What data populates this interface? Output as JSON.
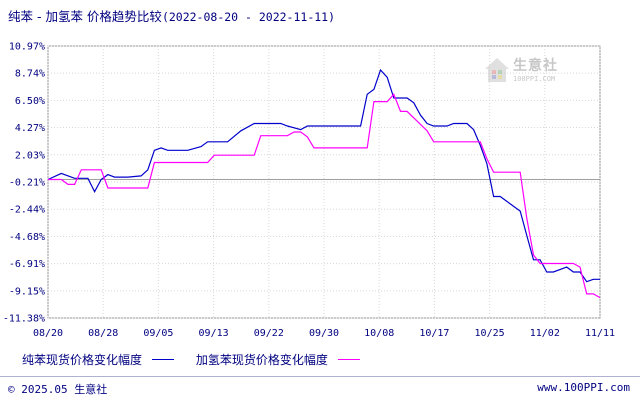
{
  "title": {
    "text": "纯苯 - 加氢苯 价格趋势比较",
    "date_range": "(2022-08-20 - 2022-11-11)"
  },
  "watermark": {
    "text": "生意社",
    "sub": "100PPI.COM"
  },
  "footer": {
    "left": "© 2025.05 生意社",
    "right": "www.100PPI.com"
  },
  "chart_data": {
    "type": "line",
    "title": "纯苯 - 加氢苯 价格趋势比较",
    "xlabel": "",
    "ylabel": "",
    "x_tick_labels": [
      "08/20",
      "08/28",
      "09/05",
      "09/13",
      "09/22",
      "09/30",
      "10/08",
      "10/17",
      "10/25",
      "11/02",
      "11/11"
    ],
    "y_tick_labels": [
      "10.97%",
      "8.74%",
      "6.50%",
      "4.27%",
      "2.03%",
      "-0.21%",
      "-2.44%",
      "-4.68%",
      "-6.91%",
      "-9.15%",
      "-11.38%"
    ],
    "y_tick_values": [
      10.97,
      8.74,
      6.5,
      4.27,
      2.03,
      -0.21,
      -2.44,
      -4.68,
      -6.91,
      -9.15,
      -11.38
    ],
    "ylim": [
      -11.38,
      10.97
    ],
    "grid": true,
    "legend_position": "bottom",
    "series": [
      {
        "name": "纯苯现货价格变化幅度",
        "color": "#0000cc",
        "points": [
          [
            "2022-08-20",
            0
          ],
          [
            "2022-08-22",
            0.5
          ],
          [
            "2022-08-24",
            0.1
          ],
          [
            "2022-08-26",
            0.1
          ],
          [
            "2022-08-27",
            -1.0
          ],
          [
            "2022-08-28",
            0
          ],
          [
            "2022-08-29",
            0.4
          ],
          [
            "2022-08-30",
            0.2
          ],
          [
            "2022-09-01",
            0.2
          ],
          [
            "2022-09-03",
            0.3
          ],
          [
            "2022-09-04",
            0.8
          ],
          [
            "2022-09-05",
            2.4
          ],
          [
            "2022-09-06",
            2.6
          ],
          [
            "2022-09-07",
            2.4
          ],
          [
            "2022-09-10",
            2.4
          ],
          [
            "2022-09-12",
            2.7
          ],
          [
            "2022-09-13",
            3.1
          ],
          [
            "2022-09-16",
            3.1
          ],
          [
            "2022-09-18",
            4.0
          ],
          [
            "2022-09-20",
            4.6
          ],
          [
            "2022-09-24",
            4.6
          ],
          [
            "2022-09-25",
            4.4
          ],
          [
            "2022-09-27",
            4.1
          ],
          [
            "2022-09-28",
            4.4
          ],
          [
            "2022-10-05",
            4.4
          ],
          [
            "2022-10-06",
            4.4
          ],
          [
            "2022-10-07",
            7.0
          ],
          [
            "2022-10-08",
            7.4
          ],
          [
            "2022-10-09",
            9.0
          ],
          [
            "2022-10-10",
            8.4
          ],
          [
            "2022-10-11",
            6.7
          ],
          [
            "2022-10-13",
            6.7
          ],
          [
            "2022-10-14",
            6.3
          ],
          [
            "2022-10-15",
            5.3
          ],
          [
            "2022-10-16",
            4.6
          ],
          [
            "2022-10-17",
            4.4
          ],
          [
            "2022-10-19",
            4.4
          ],
          [
            "2022-10-20",
            4.6
          ],
          [
            "2022-10-22",
            4.6
          ],
          [
            "2022-10-23",
            4.1
          ],
          [
            "2022-10-24",
            2.8
          ],
          [
            "2022-10-25",
            1.3
          ],
          [
            "2022-10-26",
            -1.4
          ],
          [
            "2022-10-27",
            -1.4
          ],
          [
            "2022-10-28",
            -1.8
          ],
          [
            "2022-10-30",
            -2.6
          ],
          [
            "2022-10-31",
            -4.6
          ],
          [
            "2022-11-01",
            -6.6
          ],
          [
            "2022-11-02",
            -6.6
          ],
          [
            "2022-11-03",
            -7.6
          ],
          [
            "2022-11-04",
            -7.6
          ],
          [
            "2022-11-06",
            -7.2
          ],
          [
            "2022-11-07",
            -7.6
          ],
          [
            "2022-11-08",
            -7.6
          ],
          [
            "2022-11-09",
            -8.4
          ],
          [
            "2022-11-10",
            -8.2
          ],
          [
            "2022-11-11",
            -8.2
          ]
        ]
      },
      {
        "name": "加氢苯现货价格变化幅度",
        "color": "#ff00ff",
        "points": [
          [
            "2022-08-20",
            0
          ],
          [
            "2022-08-22",
            0
          ],
          [
            "2022-08-23",
            -0.4
          ],
          [
            "2022-08-24",
            -0.4
          ],
          [
            "2022-08-25",
            0.8
          ],
          [
            "2022-08-28",
            0.8
          ],
          [
            "2022-08-29",
            -0.7
          ],
          [
            "2022-09-03",
            -0.7
          ],
          [
            "2022-09-04",
            -0.7
          ],
          [
            "2022-09-05",
            1.4
          ],
          [
            "2022-09-07",
            1.4
          ],
          [
            "2022-09-13",
            1.4
          ],
          [
            "2022-09-14",
            2.0
          ],
          [
            "2022-09-18",
            2.0
          ],
          [
            "2022-09-20",
            2.0
          ],
          [
            "2022-09-21",
            3.6
          ],
          [
            "2022-09-25",
            3.6
          ],
          [
            "2022-09-26",
            3.9
          ],
          [
            "2022-09-27",
            3.9
          ],
          [
            "2022-09-28",
            3.5
          ],
          [
            "2022-09-29",
            2.6
          ],
          [
            "2022-10-07",
            2.6
          ],
          [
            "2022-10-08",
            6.4
          ],
          [
            "2022-10-10",
            6.4
          ],
          [
            "2022-10-11",
            7.0
          ],
          [
            "2022-10-12",
            5.6
          ],
          [
            "2022-10-13",
            5.6
          ],
          [
            "2022-10-16",
            4.0
          ],
          [
            "2022-10-17",
            3.1
          ],
          [
            "2022-10-24",
            3.1
          ],
          [
            "2022-10-25",
            1.7
          ],
          [
            "2022-10-26",
            0.6
          ],
          [
            "2022-10-30",
            0.6
          ],
          [
            "2022-10-31",
            -3.2
          ],
          [
            "2022-11-01",
            -6.2
          ],
          [
            "2022-11-02",
            -6.9
          ],
          [
            "2022-11-07",
            -6.9
          ],
          [
            "2022-11-08",
            -7.2
          ],
          [
            "2022-11-09",
            -9.4
          ],
          [
            "2022-11-10",
            -9.4
          ],
          [
            "2022-11-11",
            -9.7
          ]
        ]
      }
    ]
  }
}
